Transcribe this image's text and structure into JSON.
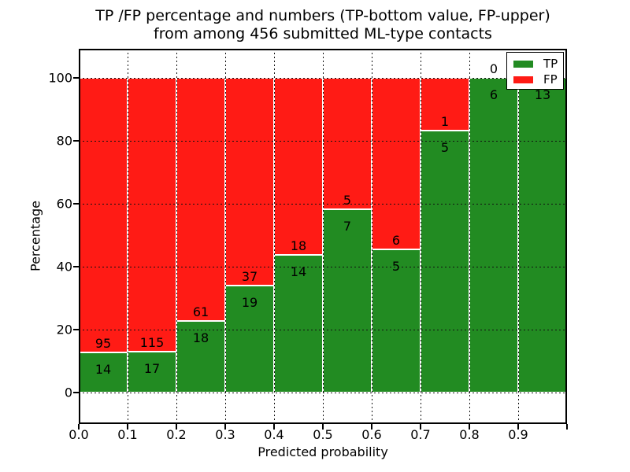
{
  "figure": {
    "title_line1": "TP /FP percentage and numbers (TP-bottom value, FP-upper)",
    "title_line2": "from among 456 submitted ML-type contacts",
    "x_axis_label": "Predicted probability",
    "y_axis_label": "Percentage"
  },
  "legend": {
    "position": "upper right",
    "items": [
      {
        "label": "TP",
        "color": "#228b22"
      },
      {
        "label": "FP",
        "color": "#ff1b15"
      }
    ]
  },
  "chart_data": {
    "type": "bar",
    "stacked": true,
    "normalization": "each bin scaled to 100%; green height = TP share, red = FP share; text annotations are raw counts (TP bottom value, FP upper)",
    "title": "TP /FP percentage and numbers (TP-bottom value, FP-upper) from among 456 submitted ML-type contacts",
    "xlabel": "Predicted probability",
    "ylabel": "Percentage",
    "total_submitted": 456,
    "bin_width": 0.1,
    "bin_starts": [
      0.0,
      0.1,
      0.2,
      0.3,
      0.4,
      0.5,
      0.6,
      0.7,
      0.8,
      0.9
    ],
    "series": [
      {
        "name": "TP",
        "color": "#228b22",
        "counts": [
          14,
          17,
          18,
          19,
          14,
          7,
          5,
          5,
          6,
          13
        ]
      },
      {
        "name": "FP",
        "color": "#ff1b15",
        "counts": [
          95,
          115,
          61,
          37,
          18,
          5,
          6,
          1,
          0,
          0
        ]
      }
    ],
    "tp_percent": [
      12.84,
      12.88,
      22.78,
      33.93,
      43.75,
      58.33,
      45.45,
      83.33,
      100.0,
      100.0
    ],
    "xticks": [
      {
        "v": 0.0,
        "label": "0.0"
      },
      {
        "v": 0.1,
        "label": "0.1"
      },
      {
        "v": 0.2,
        "label": "0.2"
      },
      {
        "v": 0.3,
        "label": "0.3"
      },
      {
        "v": 0.4,
        "label": "0.4"
      },
      {
        "v": 0.5,
        "label": "0.5"
      },
      {
        "v": 0.6,
        "label": "0.6"
      },
      {
        "v": 0.7,
        "label": "0.7"
      },
      {
        "v": 0.8,
        "label": "0.8"
      },
      {
        "v": 0.9,
        "label": "0.9"
      },
      {
        "v": 1.0,
        "label": ""
      }
    ],
    "yticks": [
      {
        "v": 0,
        "label": "0"
      },
      {
        "v": 20,
        "label": "20"
      },
      {
        "v": 40,
        "label": "40"
      },
      {
        "v": 60,
        "label": "60"
      },
      {
        "v": 80,
        "label": "80"
      },
      {
        "v": 100,
        "label": "100"
      }
    ],
    "xlim": [
      0.0,
      1.0
    ],
    "ylim": [
      -10,
      109.25
    ],
    "grid": "dotted black, both axes, drawn above bars",
    "bar_edge_color": "#ffffff",
    "legend_position": "upper right"
  }
}
